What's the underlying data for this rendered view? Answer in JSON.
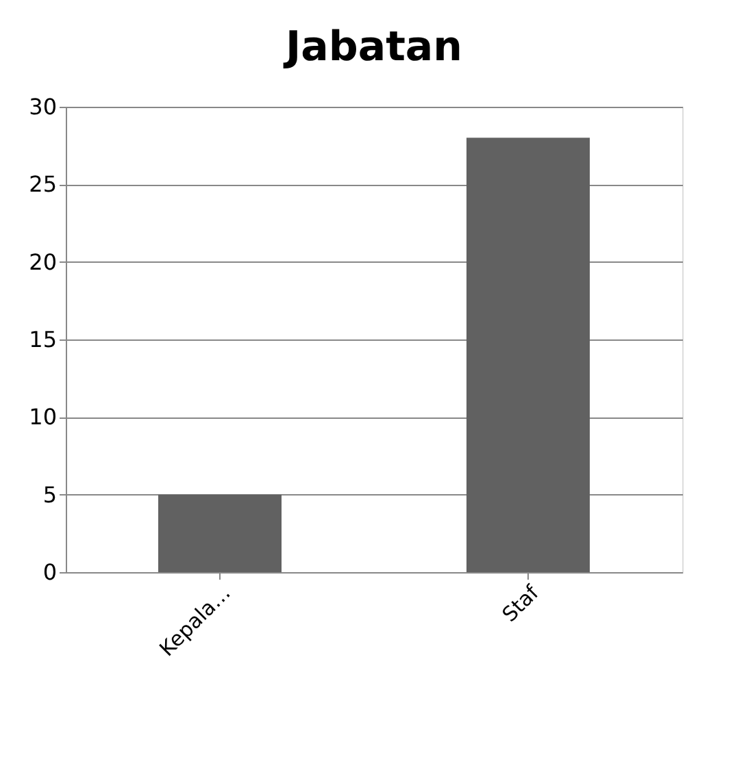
{
  "chart_data": {
    "type": "bar",
    "title": "Jabatan",
    "categories": [
      "Kepala…",
      "Staf"
    ],
    "values": [
      5,
      28
    ],
    "color": "#616161",
    "ylim": [
      0,
      30
    ],
    "yticks": [
      0,
      5,
      10,
      15,
      20,
      25,
      30
    ],
    "grid": "y"
  }
}
